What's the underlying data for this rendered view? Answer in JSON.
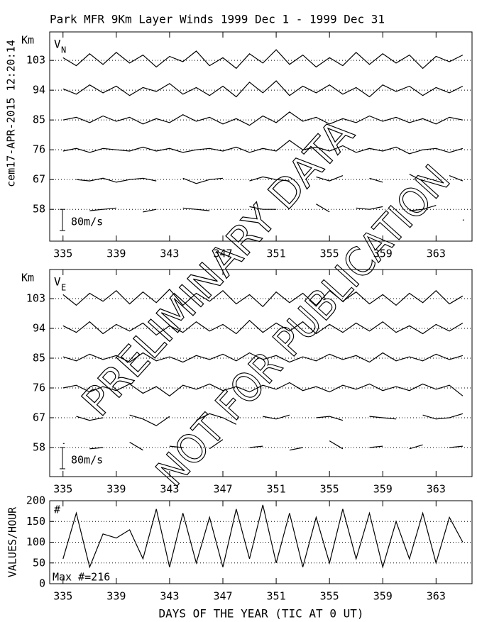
{
  "chart_data": [
    {
      "type": "wind-panel",
      "title": "Park MFR 9Km Layer Winds 1999 Dec  1 - 1999 Dec 31",
      "stamp": "cem17-APR-2015 12:20:14",
      "ylabel": "Km",
      "panel_label": {
        "main": "V",
        "sub": "N"
      },
      "scale_bar": {
        "value": 80,
        "label": "80m/s"
      },
      "xlim": [
        334,
        365.7
      ],
      "xticks": [
        335,
        339,
        343,
        347,
        351,
        355,
        359,
        363
      ],
      "ylim": [
        48.4,
        111.6
      ],
      "yticks": [
        103,
        94,
        85,
        76,
        67,
        58
      ],
      "grid": true,
      "x": [
        335,
        336,
        337,
        338,
        339,
        340,
        341,
        342,
        343,
        344,
        345,
        346,
        347,
        348,
        349,
        350,
        351,
        352,
        353,
        354,
        355,
        356,
        357,
        358,
        359,
        360,
        361,
        362,
        363,
        364,
        365
      ],
      "series": [
        {
          "baseline": 103,
          "color": "#000000",
          "values": [
            10,
            -20,
            25,
            -15,
            30,
            -10,
            20,
            -25,
            15,
            -5,
            35,
            -20,
            10,
            -30,
            25,
            -10,
            40,
            -15,
            20,
            -25,
            10,
            -20,
            30,
            -15,
            25,
            -10,
            20,
            -30,
            15,
            -5,
            20
          ]
        },
        {
          "baseline": 94,
          "color": "#000000",
          "values": [
            5,
            -15,
            20,
            -10,
            15,
            -20,
            10,
            -5,
            25,
            -15,
            10,
            -20,
            15,
            -25,
            30,
            -10,
            35,
            -20,
            15,
            -10,
            20,
            -15,
            10,
            -25,
            20,
            -5,
            15,
            -20,
            10,
            -10,
            15
          ]
        },
        {
          "baseline": 85,
          "color": "#000000",
          "values": [
            0,
            10,
            -10,
            15,
            -5,
            10,
            -15,
            5,
            -10,
            20,
            -5,
            10,
            -15,
            5,
            -20,
            15,
            -10,
            30,
            -5,
            10,
            -15,
            5,
            -10,
            15,
            -5,
            10,
            -10,
            5,
            -15,
            10,
            0
          ]
        },
        {
          "baseline": 76,
          "color": "#000000",
          "values": [
            -5,
            5,
            -10,
            5,
            0,
            -5,
            10,
            -5,
            5,
            -10,
            0,
            5,
            -5,
            10,
            -10,
            5,
            -5,
            35,
            0,
            10,
            -5,
            15,
            -10,
            5,
            -5,
            10,
            -15,
            0,
            5,
            -10,
            5
          ]
        },
        {
          "baseline": 67,
          "color": "#000000",
          "values": [
            null,
            0,
            -5,
            5,
            -10,
            0,
            5,
            -5,
            null,
            5,
            -15,
            0,
            5,
            null,
            -5,
            10,
            0,
            -5,
            null,
            10,
            -5,
            15,
            null,
            5,
            -10,
            null,
            20,
            -5,
            null,
            15,
            -5
          ]
        },
        {
          "baseline": 58,
          "color": "#000000",
          "values": [
            null,
            null,
            -5,
            0,
            5,
            null,
            -10,
            0,
            null,
            5,
            0,
            -5,
            null,
            null,
            10,
            0,
            0,
            null,
            null,
            20,
            -10,
            null,
            5,
            0,
            10,
            null,
            -5,
            0,
            15,
            null,
            -40
          ]
        }
      ]
    },
    {
      "type": "wind-panel",
      "ylabel": "Km",
      "panel_label": {
        "main": "V",
        "sub": "E"
      },
      "scale_bar": {
        "value": 80,
        "label": "80m/s"
      },
      "xlim": [
        334,
        365.7
      ],
      "xticks": [
        335,
        339,
        343,
        347,
        351,
        355,
        359,
        363
      ],
      "ylim": [
        49.2,
        111.8
      ],
      "yticks": [
        103,
        94,
        85,
        76,
        67,
        58
      ],
      "grid": true,
      "x": [
        335,
        336,
        337,
        338,
        339,
        340,
        341,
        342,
        343,
        344,
        345,
        346,
        347,
        348,
        349,
        350,
        351,
        352,
        353,
        354,
        355,
        356,
        357,
        358,
        359,
        360,
        361,
        362,
        363,
        364,
        365
      ],
      "series": [
        {
          "baseline": 103,
          "color": "#000000",
          "values": [
            15,
            -25,
            20,
            -10,
            30,
            -20,
            25,
            -15,
            35,
            -25,
            20,
            -10,
            30,
            -20,
            15,
            -30,
            25,
            -15,
            20,
            -25,
            30,
            -10,
            25,
            -20,
            15,
            -25,
            20,
            -15,
            30,
            -20,
            10
          ]
        },
        {
          "baseline": 94,
          "color": "#000000",
          "values": [
            10,
            -15,
            25,
            -20,
            15,
            -10,
            20,
            -25,
            10,
            -15,
            25,
            -10,
            15,
            -20,
            30,
            -15,
            20,
            -10,
            25,
            -20,
            15,
            -15,
            20,
            -10,
            25,
            -15,
            10,
            -20,
            15,
            -10,
            20
          ]
        },
        {
          "baseline": 85,
          "color": "#000000",
          "values": [
            5,
            -10,
            15,
            -5,
            10,
            -15,
            20,
            -10,
            5,
            -15,
            10,
            -5,
            15,
            -10,
            20,
            -5,
            10,
            -15,
            5,
            -10,
            15,
            -5,
            10,
            -15,
            20,
            -10,
            5,
            -10,
            15,
            -5,
            10
          ]
        },
        {
          "baseline": 76,
          "color": "#000000",
          "values": [
            0,
            10,
            -15,
            5,
            -10,
            15,
            -20,
            5,
            -30,
            10,
            -5,
            15,
            -10,
            5,
            -15,
            10,
            -5,
            20,
            -10,
            5,
            -15,
            10,
            -5,
            15,
            -10,
            5,
            -10,
            15,
            -5,
            10,
            -30
          ]
        },
        {
          "baseline": 67,
          "color": "#000000",
          "values": [
            null,
            5,
            -10,
            0,
            null,
            10,
            -5,
            -30,
            5,
            null,
            -10,
            15,
            0,
            -25,
            null,
            5,
            -5,
            10,
            null,
            0,
            5,
            -10,
            null,
            5,
            0,
            -5,
            null,
            10,
            -5,
            0,
            15
          ]
        },
        {
          "baseline": 58,
          "color": "#000000",
          "values": [
            15,
            null,
            -5,
            0,
            null,
            20,
            -10,
            null,
            5,
            0,
            null,
            -5,
            30,
            null,
            0,
            5,
            null,
            -10,
            0,
            null,
            25,
            -5,
            null,
            0,
            5,
            null,
            -5,
            10,
            null,
            0,
            5
          ]
        }
      ]
    },
    {
      "type": "count-panel",
      "ylabel": "VALUES/HOUR",
      "annotations": [
        "#",
        "Max #=216"
      ],
      "xlabel": "DAYS OF THE YEAR (TIC AT 0 UT)",
      "xlim": [
        334,
        365.7
      ],
      "xticks": [
        335,
        339,
        343,
        347,
        351,
        355,
        359,
        363
      ],
      "ylim": [
        0,
        200
      ],
      "yticks": [
        0,
        50,
        100,
        150,
        200
      ],
      "grid": true,
      "x": [
        335,
        336,
        337,
        338,
        339,
        340,
        341,
        342,
        343,
        344,
        345,
        346,
        347,
        348,
        349,
        350,
        351,
        352,
        353,
        354,
        355,
        356,
        357,
        358,
        359,
        360,
        361,
        362,
        363,
        364,
        365
      ],
      "series": [
        {
          "color": "#000000",
          "values": [
            60,
            170,
            40,
            120,
            110,
            130,
            60,
            180,
            40,
            170,
            50,
            160,
            40,
            180,
            60,
            190,
            50,
            170,
            40,
            160,
            50,
            180,
            60,
            170,
            40,
            150,
            60,
            170,
            50,
            160,
            100
          ]
        }
      ]
    }
  ],
  "watermark": [
    "PRELIMINARY DATA",
    "NOT FOR PUBLICATION"
  ]
}
